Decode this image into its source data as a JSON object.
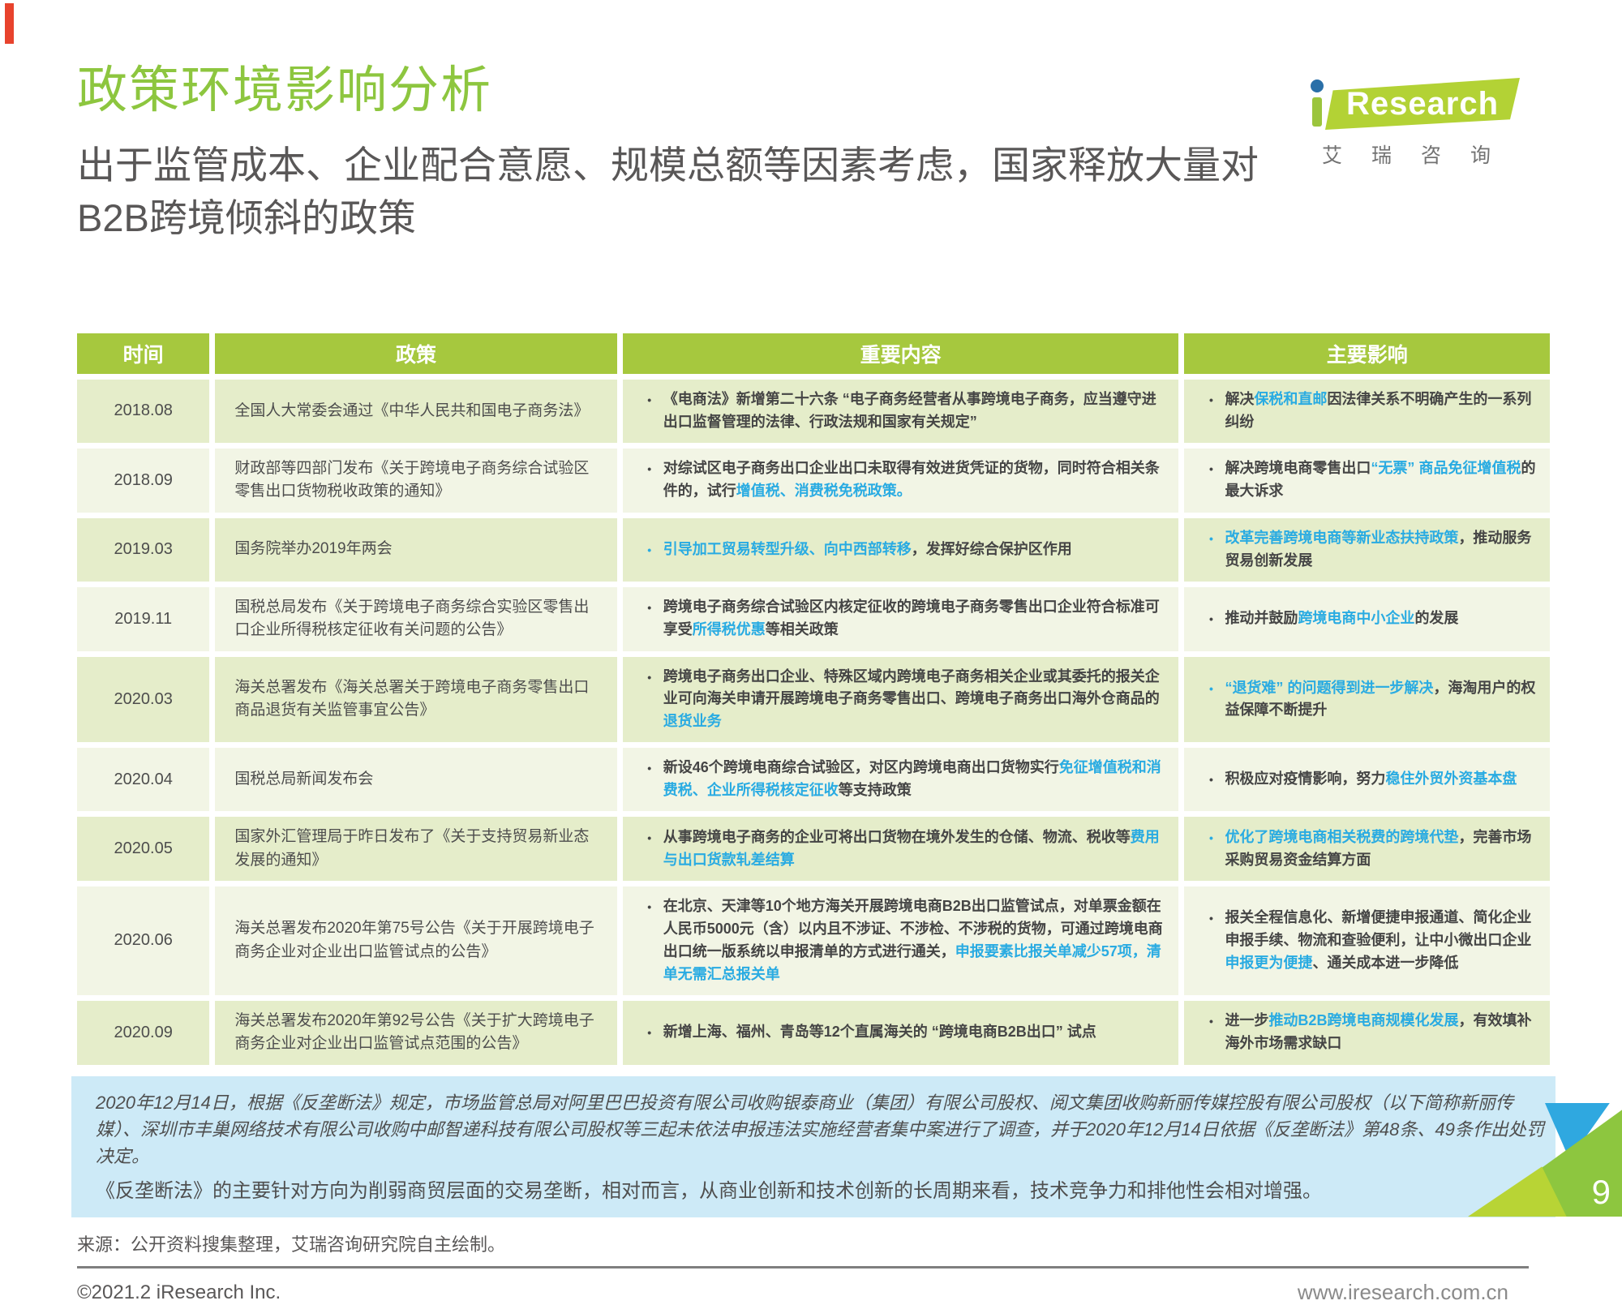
{
  "page": {
    "title": "政策环境影响分析",
    "subtitle": "出于监管成本、企业配合意愿、规模总额等因素考虑，国家释放大量对B2B跨境倾斜的政策"
  },
  "logo": {
    "i": "i",
    "brand": "Research",
    "cn": "艾瑞咨询"
  },
  "table": {
    "headers": [
      "时间",
      "政策",
      "重要内容",
      "主要影响"
    ],
    "rows": [
      {
        "time": "2018.08",
        "policy": "全国人大常委会通过《中华人民共和国电子商务法》",
        "content": [
          {
            "text": "《电商法》新增第二十六条 “电子商务经营者从事跨境电子商务，应当遵守进出口监督管理的法律、行政法规和国家有关规定”",
            "highlight": false
          }
        ],
        "impact": [
          {
            "text": "解决",
            "highlight": false
          },
          {
            "text": "保税和直邮",
            "highlight": true
          },
          {
            "text": "因法律关系不明确产生的一系列纠纷",
            "highlight": false
          }
        ]
      },
      {
        "time": "2018.09",
        "policy": "财政部等四部门发布《关于跨境电子商务综合试验区零售出口货物税收政策的通知》",
        "content": [
          {
            "text": "对综试区电子商务出口企业出口未取得有效进货凭证的货物，同时符合相关条件的，试行",
            "highlight": false
          },
          {
            "text": "增值税、消费税免税政策。",
            "highlight": true
          }
        ],
        "impact": [
          {
            "text": "解决跨境电商零售出口",
            "highlight": false
          },
          {
            "text": "“无票” 商品免征增值税",
            "highlight": true
          },
          {
            "text": "的最大诉求",
            "highlight": false
          }
        ]
      },
      {
        "time": "2019.03",
        "policy": "国务院举办2019年两会",
        "content": [
          {
            "text": "引导加工贸易转型升级、向中西部转移",
            "highlight": true
          },
          {
            "text": "，发挥好综合保护区作用",
            "highlight": false
          }
        ],
        "impact": [
          {
            "text": "改革完善跨境电商等新业态扶持政策",
            "highlight": true
          },
          {
            "text": "，推动服务贸易创新发展",
            "highlight": false
          }
        ]
      },
      {
        "time": "2019.11",
        "policy": "国税总局发布《关于跨境电子商务综合实验区零售出口企业所得税核定征收有关问题的公告》",
        "content": [
          {
            "text": "跨境电子商务综合试验区内核定征收的跨境电子商务零售出口企业符合标准可享受",
            "highlight": false
          },
          {
            "text": "所得税优惠",
            "highlight": true
          },
          {
            "text": "等相关政策",
            "highlight": false
          }
        ],
        "impact": [
          {
            "text": "推动并鼓励",
            "highlight": false
          },
          {
            "text": "跨境电商中小企业",
            "highlight": true
          },
          {
            "text": "的发展",
            "highlight": false
          }
        ]
      },
      {
        "time": "2020.03",
        "policy": "海关总署发布《海关总署关于跨境电子商务零售出口商品退货有关监管事宜公告》",
        "content": [
          {
            "text": "跨境电子商务出口企业、特殊区域内跨境电子商务相关企业或其委托的报关企业可向海关申请开展跨境电子商务零售出口、跨境电子商务出口海外仓商品的",
            "highlight": false
          },
          {
            "text": "退货业务",
            "highlight": true
          }
        ],
        "impact": [
          {
            "text": "“退货难” 的问题得到进一步解决",
            "highlight": true
          },
          {
            "text": "，海淘用户的权益保障不断提升",
            "highlight": false
          }
        ]
      },
      {
        "time": "2020.04",
        "policy": "国税总局新闻发布会",
        "content": [
          {
            "text": "新设46个跨境电商综合试验区，对区内跨境电商出口货物实行",
            "highlight": false
          },
          {
            "text": "免征增值税和消费税、企业所得税核定征收",
            "highlight": true
          },
          {
            "text": "等支持政策",
            "highlight": false
          }
        ],
        "impact": [
          {
            "text": "积极应对疫情影响，努力",
            "highlight": false
          },
          {
            "text": "稳住外贸外资基本盘",
            "highlight": true
          }
        ]
      },
      {
        "time": "2020.05",
        "policy": "国家外汇管理局于昨日发布了《关于支持贸易新业态发展的通知》",
        "content": [
          {
            "text": "从事跨境电子商务的企业可将出口货物在境外发生的仓储、物流、税收等",
            "highlight": false
          },
          {
            "text": "费用与出口货款轧差结算",
            "highlight": true
          }
        ],
        "impact": [
          {
            "text": "优化了跨境电商相关税费的跨境代垫",
            "highlight": true
          },
          {
            "text": "，完善市场采购贸易资金结算方面",
            "highlight": false
          }
        ]
      },
      {
        "time": "2020.06",
        "policy": "海关总署发布2020年第75号公告《关于开展跨境电子商务企业对企业出口监管试点的公告》",
        "content": [
          {
            "text": "在北京、天津等10个地方海关开展跨境电商B2B出口监管试点，对单票金额在人民币5000元（含）以内且不涉证、不涉检、不涉税的货物，可通过跨境电商出口统一版系统以申报清单的方式进行通关，",
            "highlight": false
          },
          {
            "text": "申报要素比报关单减少57项，清单无需汇总报关单",
            "highlight": true
          }
        ],
        "impact": [
          {
            "text": "报关全程信息化、新增便捷申报通道、简化企业申报手续、物流和查验便利，让中小微出口企业",
            "highlight": false
          },
          {
            "text": "申报更为便捷",
            "highlight": true
          },
          {
            "text": "、通关成本进一步降低",
            "highlight": false
          }
        ]
      },
      {
        "time": "2020.09",
        "policy": "海关总署发布2020年第92号公告《关于扩大跨境电子商务企业对企业出口监管试点范围的公告》",
        "content": [
          {
            "text": "新增上海、福州、青岛等12个直属海关的 “跨境电商B2B出口” 试点",
            "highlight": false
          }
        ],
        "impact": [
          {
            "text": "进一步",
            "highlight": false
          },
          {
            "text": "推动B2B跨境电商规模化发展",
            "highlight": true
          },
          {
            "text": "，有效填补海外市场需求缺口",
            "highlight": false
          }
        ]
      }
    ]
  },
  "note": {
    "para1": "2020年12月14日，根据《反垄断法》规定，市场监管总局对阿里巴巴投资有限公司收购银泰商业（集团）有限公司股权、阅文集团收购新丽传媒控股有限公司股权（以下简称新丽传媒）、深圳市丰巢网络技术有限公司收购中邮智递科技有限公司股权等三起未依法申报违法实施经营者集中案进行了调查，并于2020年12月14日依据《反垄断法》第48条、49条作出处罚决定。",
    "para2": "《反垄断法》的主要针对方向为削弱商贸层面的交易垄断，相对而言，从商业创新和技术创新的长周期来看，技术竞争力和排他性会相对增强。"
  },
  "footer": {
    "source": "来源：公开资料搜集整理，艾瑞咨询研究院自主绘制。",
    "copyright": "©2021.2 iResearch Inc.",
    "website": "www.iresearch.com.cn",
    "page_number": "9"
  },
  "colors": {
    "accent_green": "#8dc63f",
    "header_green": "#a6c83e",
    "highlight_blue": "#29abe2",
    "note_blue": "#cdeaf7",
    "red_accent": "#e8432d"
  }
}
